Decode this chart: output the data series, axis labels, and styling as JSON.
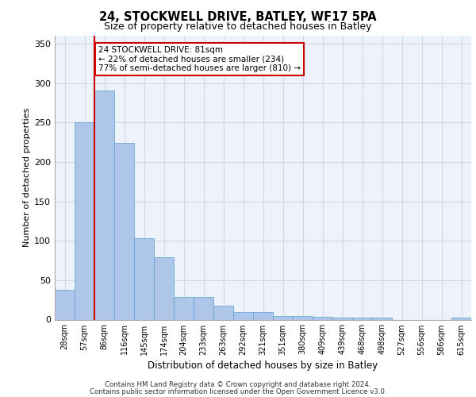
{
  "title1": "24, STOCKWELL DRIVE, BATLEY, WF17 5PA",
  "title2": "Size of property relative to detached houses in Batley",
  "xlabel": "Distribution of detached houses by size in Batley",
  "ylabel": "Number of detached properties",
  "categories": [
    "28sqm",
    "57sqm",
    "86sqm",
    "116sqm",
    "145sqm",
    "174sqm",
    "204sqm",
    "233sqm",
    "263sqm",
    "292sqm",
    "321sqm",
    "351sqm",
    "380sqm",
    "409sqm",
    "439sqm",
    "468sqm",
    "498sqm",
    "527sqm",
    "556sqm",
    "586sqm",
    "615sqm"
  ],
  "values": [
    38,
    250,
    291,
    224,
    103,
    79,
    29,
    29,
    18,
    10,
    10,
    5,
    5,
    4,
    3,
    3,
    3,
    0,
    0,
    0,
    3
  ],
  "bar_color": "#aec6e8",
  "bar_edge_color": "#5a9fd4",
  "grid_color": "#d0d8e8",
  "background_color": "#eef2fa",
  "red_line_x": 2,
  "annotation_text": "24 STOCKWELL DRIVE: 81sqm\n← 22% of detached houses are smaller (234)\n77% of semi-detached houses are larger (810) →",
  "annotation_box_color": "#ffffff",
  "annotation_border_color": "#cc0000",
  "ylim": [
    0,
    360
  ],
  "yticks": [
    0,
    50,
    100,
    150,
    200,
    250,
    300,
    350
  ],
  "footer1": "Contains HM Land Registry data © Crown copyright and database right 2024.",
  "footer2": "Contains public sector information licensed under the Open Government Licence v3.0."
}
